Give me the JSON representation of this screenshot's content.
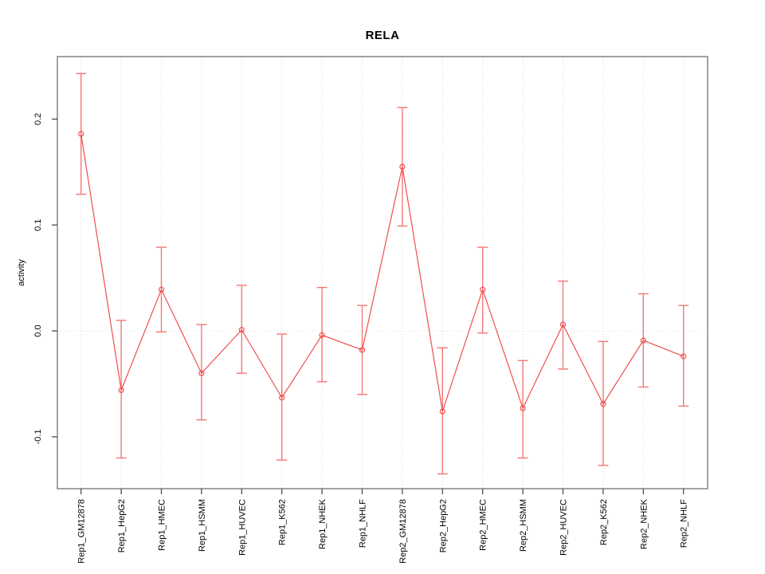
{
  "chart_data": {
    "type": "line",
    "title": "RELA",
    "xlabel": "",
    "ylabel": "activity",
    "legend": "none",
    "grid": "dotted vertical gridline at each category; dotted horizontal line at y=0",
    "categories": [
      "Rep1_GM12878",
      "Rep1_HepG2",
      "Rep1_HMEC",
      "Rep1_HSMM",
      "Rep1_HUVEC",
      "Rep1_K562",
      "Rep1_NHEK",
      "Rep1_NHLF",
      "Rep2_GM12878",
      "Rep2_HepG2",
      "Rep2_HMEC",
      "Rep2_HSMM",
      "Rep2_HUVEC",
      "Rep2_K562",
      "Rep2_NHEK",
      "Rep2_NHLF"
    ],
    "series": [
      {
        "name": "activity",
        "values": [
          0.186,
          -0.056,
          0.039,
          -0.04,
          0.001,
          -0.063,
          -0.004,
          -0.018,
          0.155,
          -0.076,
          0.039,
          -0.073,
          0.006,
          -0.069,
          -0.009,
          -0.024
        ],
        "err_lo": [
          0.129,
          -0.12,
          -0.001,
          -0.084,
          -0.04,
          -0.122,
          -0.048,
          -0.06,
          0.099,
          -0.135,
          -0.002,
          -0.12,
          -0.036,
          -0.127,
          -0.053,
          -0.071
        ],
        "err_hi": [
          0.243,
          0.01,
          0.079,
          0.006,
          0.043,
          -0.003,
          0.041,
          0.024,
          0.211,
          -0.016,
          0.079,
          -0.028,
          0.047,
          -0.01,
          0.035,
          0.024
        ]
      }
    ],
    "yticks": [
      -0.1,
      0.0,
      0.1,
      0.2
    ],
    "ytick_labels": [
      "-0.1",
      "0.0",
      "0.1",
      "0.2"
    ],
    "ylim": [
      -0.149,
      0.259
    ],
    "marker": "open-circle",
    "colors": {
      "line": "#f04f4f",
      "error_bar": "#f47777",
      "grid": "#d8d8d8",
      "zero_line": "#dcdcdc",
      "box": "#8c8c8c",
      "tick": "#404040",
      "text": "#000000"
    }
  }
}
